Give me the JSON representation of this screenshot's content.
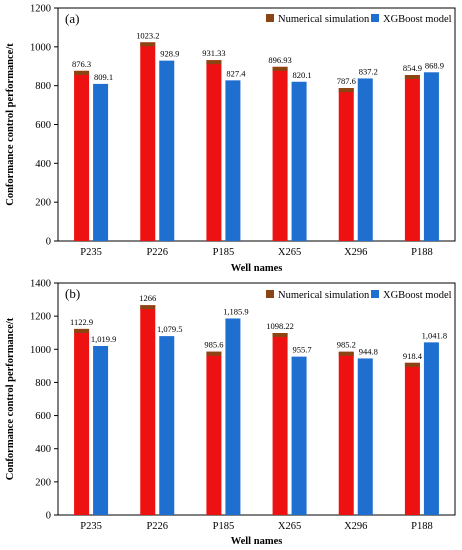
{
  "colors": {
    "numerical": "#ee1111",
    "numerical_edge": "#8b4513",
    "xgboost": "#1f6fd1",
    "axis": "#000000"
  },
  "chart_data": [
    {
      "type": "bar",
      "panel_label": "(a)",
      "categories": [
        "P235",
        "P226",
        "P185",
        "X265",
        "X296",
        "P188"
      ],
      "series": [
        {
          "name": "Numerical simulation",
          "values": [
            876.3,
            1023.2,
            931.33,
            896.93,
            787.6,
            854.9
          ],
          "labels": [
            "876.3",
            "1023.2",
            "931.33",
            "896.93",
            "787.6",
            "854.9"
          ]
        },
        {
          "name": "XGBoost model",
          "values": [
            809.1,
            928.9,
            827.4,
            820.1,
            837.2,
            868.9
          ],
          "labels": [
            "809.1",
            "928.9",
            "827.4",
            "820.1",
            "837.2",
            "868.9"
          ]
        }
      ],
      "xlabel": "Well names",
      "ylabel": "Conformance control performance/t",
      "ylim": [
        0,
        1200
      ],
      "yticks": [
        "0",
        "200",
        "400",
        "600",
        "800",
        "1000",
        "1200"
      ],
      "legend": "top-right",
      "grid": false
    },
    {
      "type": "bar",
      "panel_label": "(b)",
      "categories": [
        "P235",
        "P226",
        "P185",
        "X265",
        "X296",
        "P188"
      ],
      "series": [
        {
          "name": "Numerical simulation",
          "values": [
            1122.9,
            1266,
            985.6,
            1098.22,
            985.2,
            918.4
          ],
          "labels": [
            "1122.9",
            "1266",
            "985.6",
            "1098.22",
            "985.2",
            "918.4"
          ]
        },
        {
          "name": "XGBoost model",
          "values": [
            1019.9,
            1079.5,
            1185.9,
            955.7,
            944.8,
            1041.8
          ],
          "labels": [
            "1,019.9",
            "1,079.5",
            "1,185.9",
            "955.7",
            "944.8",
            "1,041.8"
          ]
        }
      ],
      "xlabel": "Well names",
      "ylabel": "Conformance control performance/t",
      "ylim": [
        0,
        1400
      ],
      "yticks": [
        "0",
        "200",
        "400",
        "600",
        "800",
        "1000",
        "1200",
        "1400"
      ],
      "legend": "top-right",
      "grid": false
    }
  ]
}
